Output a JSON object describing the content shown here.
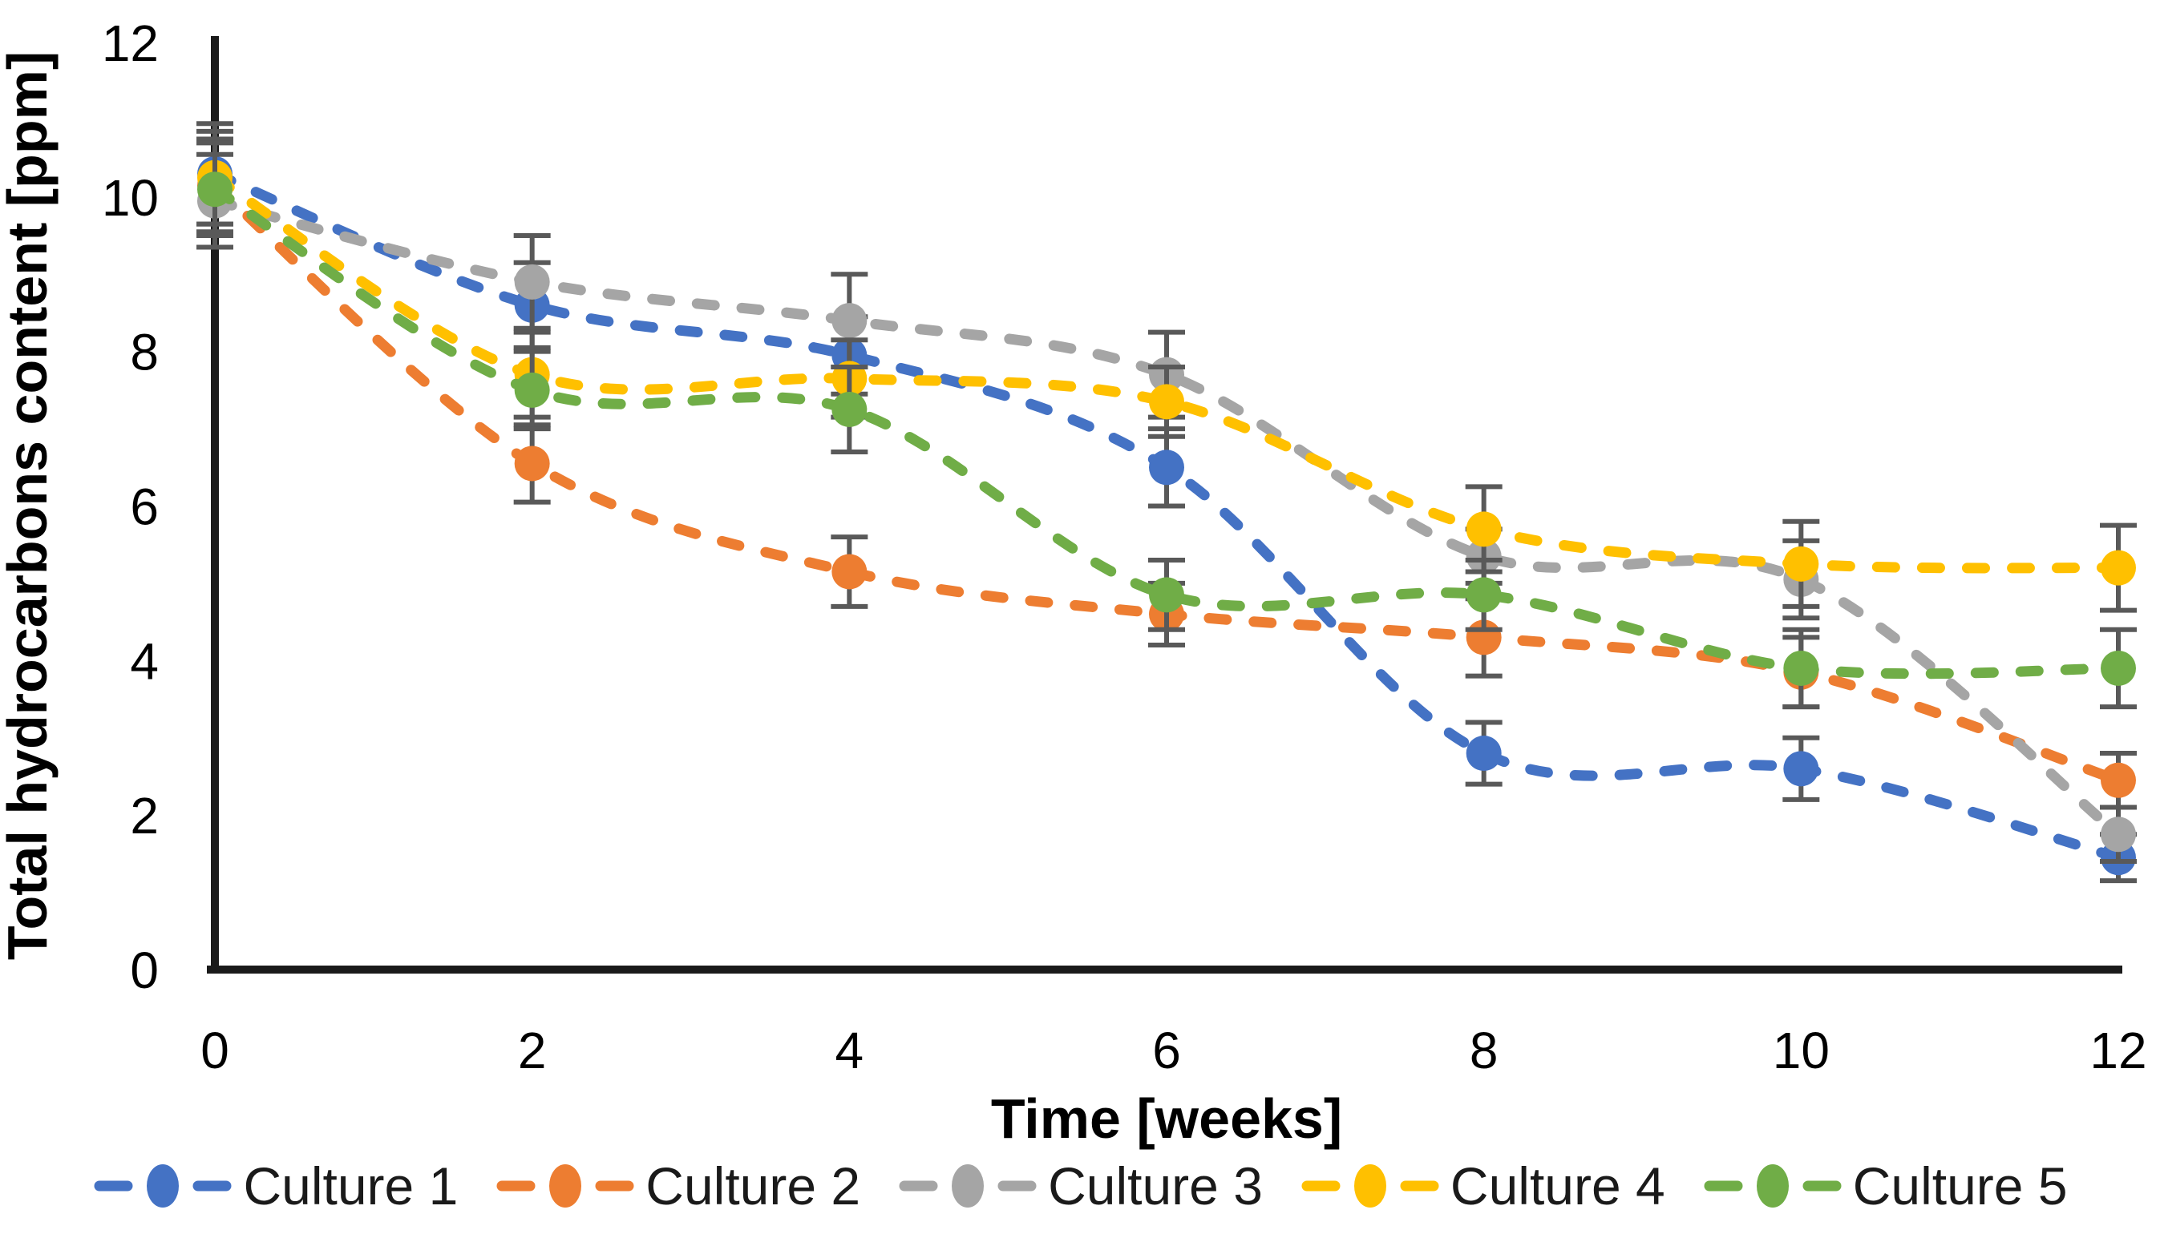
{
  "figure": {
    "background": "#FFFFFF"
  },
  "chart_data": {
    "type": "line",
    "title": "",
    "xlabel": "Time [weeks]",
    "ylabel": "Total hydrocarbons content [ppm]",
    "x": [
      0,
      2,
      4,
      6,
      8,
      10,
      12
    ],
    "x_ticks": [
      "0",
      "2",
      "4",
      "6",
      "8",
      "10",
      "12"
    ],
    "y_ticks": [
      "0",
      "2",
      "4",
      "6",
      "8",
      "10",
      "12"
    ],
    "xlim": [
      0,
      12
    ],
    "ylim": [
      0,
      12
    ],
    "grid": false,
    "legend_position": "bottom",
    "line_style": "dashed-smooth",
    "marker": "circle",
    "error_bars": true,
    "axis_color": "#1A1A1A",
    "error_bar_color": "#595959",
    "series": [
      {
        "name": "Culture 1",
        "color": "#4472C4",
        "values": [
          10.3,
          8.6,
          7.95,
          6.5,
          2.8,
          2.6,
          1.45
        ],
        "errors": [
          0.65,
          0.55,
          0.5,
          0.5,
          0.4,
          0.4,
          0.3
        ]
      },
      {
        "name": "Culture 2",
        "color": "#ED7D31",
        "values": [
          10.15,
          6.55,
          5.15,
          4.6,
          4.3,
          3.85,
          2.45
        ],
        "errors": [
          0.6,
          0.5,
          0.45,
          0.4,
          0.5,
          0.45,
          0.35
        ]
      },
      {
        "name": "Culture 3",
        "color": "#A5A5A5",
        "values": [
          9.95,
          8.9,
          8.4,
          7.7,
          5.35,
          5.05,
          1.75
        ],
        "errors": [
          0.6,
          0.6,
          0.6,
          0.55,
          0.35,
          0.5,
          0.35
        ]
      },
      {
        "name": "Culture 4",
        "color": "#FFC000",
        "values": [
          10.25,
          7.7,
          7.65,
          7.35,
          5.7,
          5.25,
          5.2
        ],
        "errors": [
          0.6,
          0.55,
          0.5,
          0.45,
          0.55,
          0.55,
          0.55
        ]
      },
      {
        "name": "Culture 5",
        "color": "#70AD47",
        "values": [
          10.1,
          7.5,
          7.25,
          4.85,
          4.85,
          3.9,
          3.9
        ],
        "errors": [
          0.6,
          0.5,
          0.55,
          0.45,
          0.45,
          0.5,
          0.5
        ]
      }
    ]
  }
}
